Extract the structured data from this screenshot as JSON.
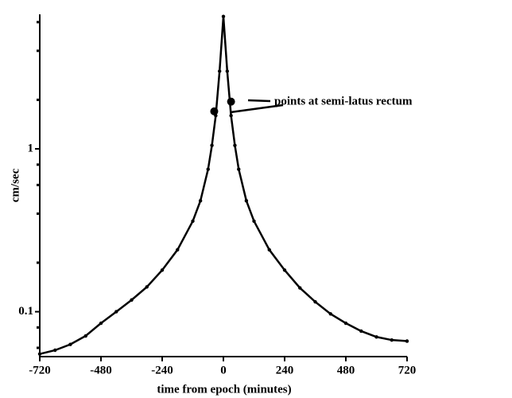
{
  "chart_data": {
    "type": "line",
    "x_label": "time from epoch (minutes)",
    "y_label": "cm/sec",
    "annotation": "points at semi-latus rectum",
    "log_y": true,
    "color": "#000000",
    "xlim": [
      -720,
      720
    ],
    "xticks": [
      -720,
      -480,
      -240,
      0,
      240,
      480,
      720
    ],
    "ylim": [
      0.053,
      6.7
    ],
    "yticks": [
      0.1,
      1
    ],
    "yminorticks": [
      0.06,
      0.08,
      0.2,
      0.4,
      0.6,
      0.8,
      2,
      4,
      6
    ],
    "x": [
      -720,
      -660,
      -600,
      -540,
      -480,
      -420,
      -360,
      -300,
      -240,
      -180,
      -120,
      -90,
      -60,
      -45,
      -30,
      -15,
      0,
      15,
      30,
      45,
      60,
      90,
      120,
      180,
      240,
      300,
      360,
      420,
      480,
      540,
      600,
      660,
      720
    ],
    "values": [
      0.055,
      0.058,
      0.063,
      0.071,
      0.085,
      0.1,
      0.118,
      0.142,
      0.18,
      0.24,
      0.36,
      0.48,
      0.75,
      1.05,
      1.6,
      3.0,
      6.5,
      3.0,
      1.6,
      1.05,
      0.75,
      0.48,
      0.36,
      0.24,
      0.18,
      0.14,
      0.115,
      0.097,
      0.085,
      0.076,
      0.07,
      0.067,
      0.066
    ],
    "special_points": {
      "x": [
        -36,
        30
      ],
      "values": [
        1.7,
        1.95
      ]
    }
  }
}
